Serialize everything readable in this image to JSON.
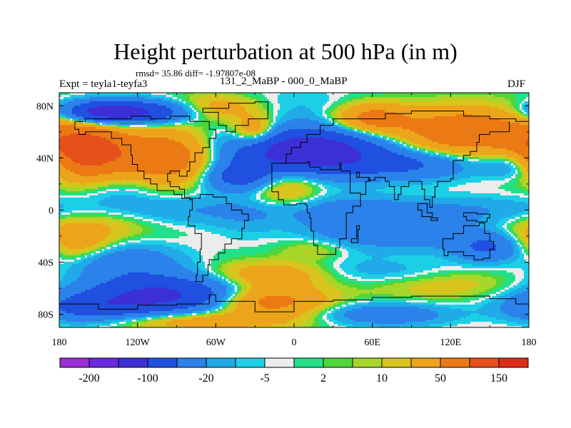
{
  "title": "Height perturbation at 500 hPa (in m)",
  "stats": "rmsd= 35.86  diff= -1.97807e-08",
  "expt": "Expt = teyla1-teyfa3",
  "subtitle": "131_2_MaBP - 000_0_MaBP",
  "season": "DJF",
  "map": {
    "lon_range": [
      -180,
      180
    ],
    "lat_range": [
      -90,
      90
    ],
    "lat_ticks": [
      {
        "value": 80,
        "label": "80N"
      },
      {
        "value": 40,
        "label": "40N"
      },
      {
        "value": 0,
        "label": "0"
      },
      {
        "value": -40,
        "label": "40S"
      },
      {
        "value": -80,
        "label": "80S"
      }
    ],
    "lon_ticks": [
      {
        "value": -180,
        "label": "180"
      },
      {
        "value": -120,
        "label": "120W"
      },
      {
        "value": -60,
        "label": "60W"
      },
      {
        "value": 0,
        "label": "0"
      },
      {
        "value": 60,
        "label": "60E"
      },
      {
        "value": 120,
        "label": "120E"
      },
      {
        "value": 180,
        "label": "180"
      }
    ]
  },
  "colorbar": {
    "colors": [
      "#9b2fd6",
      "#6a28e0",
      "#3c2fd8",
      "#1f50e0",
      "#2a82ea",
      "#20aae8",
      "#1ccfe6",
      "#ececec",
      "#22e08a",
      "#4ed63a",
      "#a6d62a",
      "#d8c41c",
      "#eca41a",
      "#ec7a14",
      "#e6501a",
      "#e02a1a"
    ],
    "labels": [
      "-200",
      "-100",
      "-20",
      "-5",
      "2",
      "10",
      "50",
      "150"
    ]
  },
  "field": {
    "cell": 3,
    "levels": [
      -200,
      -150,
      -100,
      -50,
      -20,
      -10,
      -5,
      -2,
      2,
      5,
      10,
      20,
      50,
      100,
      150
    ],
    "colors": [
      "#9b2fd6",
      "#6a28e0",
      "#3c2fd8",
      "#1f50e0",
      "#2a82ea",
      "#20aae8",
      "#1ccfe6",
      "#ececec",
      "#22e08a",
      "#4ed63a",
      "#a6d62a",
      "#d8c41c",
      "#eca41a",
      "#ec7a14",
      "#e6501a",
      "#e02a1a"
    ]
  }
}
